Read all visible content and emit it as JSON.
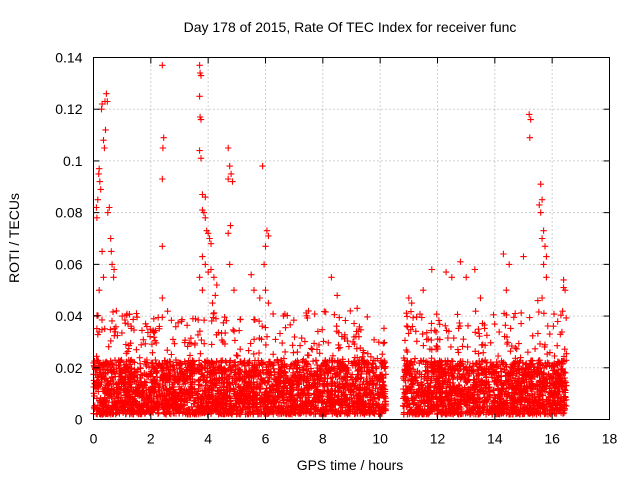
{
  "chart_data": {
    "type": "scatter",
    "title": "Day 178 of 2015, Rate Of TEC Index for receiver func",
    "xlabel": "GPS time / hours",
    "ylabel": "ROTI / TECUs",
    "xlim": [
      0,
      18
    ],
    "ylim": [
      0,
      0.14
    ],
    "x_ticks": [
      0,
      2,
      4,
      6,
      8,
      10,
      12,
      14,
      16,
      18
    ],
    "y_ticks": [
      0,
      0.02,
      0.04,
      0.06,
      0.08,
      0.1,
      0.12,
      0.14
    ],
    "x_tick_labels": [
      "0",
      "2",
      "4",
      "6",
      "8",
      "10",
      "12",
      "14",
      "16",
      "18"
    ],
    "y_tick_labels": [
      "0",
      "0.02",
      "0.04",
      "0.06",
      "0.08",
      "0.1",
      "0.12",
      "0.14"
    ],
    "grid": true,
    "marker": "+",
    "color": "#ff0000",
    "series": [
      {
        "name": "ROTI",
        "segments": [
          [
            0,
            10.2
          ],
          [
            10.8,
            16.5
          ]
        ],
        "baseline_range": [
          0.002,
          0.03
        ],
        "outliers": [
          [
            0.1,
            0.082
          ],
          [
            0.12,
            0.078
          ],
          [
            0.15,
            0.085
          ],
          [
            0.18,
            0.095
          ],
          [
            0.2,
            0.097
          ],
          [
            0.22,
            0.092
          ],
          [
            0.25,
            0.089
          ],
          [
            0.28,
            0.12
          ],
          [
            0.3,
            0.122
          ],
          [
            0.35,
            0.108
          ],
          [
            0.38,
            0.105
          ],
          [
            0.4,
            0.123
          ],
          [
            0.42,
            0.112
          ],
          [
            0.45,
            0.126
          ],
          [
            0.48,
            0.123
          ],
          [
            0.5,
            0.08
          ],
          [
            0.55,
            0.082
          ],
          [
            0.3,
            0.065
          ],
          [
            0.35,
            0.055
          ],
          [
            0.6,
            0.07
          ],
          [
            0.62,
            0.065
          ],
          [
            0.65,
            0.06
          ],
          [
            0.7,
            0.055
          ],
          [
            0.72,
            0.058
          ],
          [
            0.2,
            0.05
          ],
          [
            0.8,
            0.042
          ],
          [
            1.0,
            0.04
          ],
          [
            1.5,
            0.041
          ],
          [
            2.4,
            0.137
          ],
          [
            2.45,
            0.109
          ],
          [
            2.42,
            0.105
          ],
          [
            2.4,
            0.093
          ],
          [
            2.4,
            0.067
          ],
          [
            2.4,
            0.047
          ],
          [
            2.3,
            0.036
          ],
          [
            3.7,
            0.137
          ],
          [
            3.72,
            0.134
          ],
          [
            3.75,
            0.133
          ],
          [
            3.7,
            0.125
          ],
          [
            3.72,
            0.117
          ],
          [
            3.75,
            0.116
          ],
          [
            3.7,
            0.104
          ],
          [
            3.75,
            0.101
          ],
          [
            3.8,
            0.087
          ],
          [
            3.9,
            0.086
          ],
          [
            3.8,
            0.081
          ],
          [
            3.85,
            0.08
          ],
          [
            3.9,
            0.078
          ],
          [
            3.95,
            0.073
          ],
          [
            4.0,
            0.072
          ],
          [
            4.05,
            0.07
          ],
          [
            4.1,
            0.068
          ],
          [
            3.8,
            0.063
          ],
          [
            3.9,
            0.06
          ],
          [
            4.0,
            0.057
          ],
          [
            4.1,
            0.058
          ],
          [
            4.2,
            0.055
          ],
          [
            3.7,
            0.055
          ],
          [
            3.8,
            0.05
          ],
          [
            4.3,
            0.052
          ],
          [
            4.25,
            0.048
          ],
          [
            4.15,
            0.045
          ],
          [
            4.7,
            0.105
          ],
          [
            4.75,
            0.098
          ],
          [
            4.8,
            0.095
          ],
          [
            4.7,
            0.093
          ],
          [
            4.85,
            0.092
          ],
          [
            4.7,
            0.072
          ],
          [
            4.78,
            0.075
          ],
          [
            4.75,
            0.06
          ],
          [
            4.9,
            0.05
          ],
          [
            5.5,
            0.056
          ],
          [
            5.6,
            0.05
          ],
          [
            5.9,
            0.098
          ],
          [
            6.05,
            0.073
          ],
          [
            6.1,
            0.071
          ],
          [
            6.0,
            0.067
          ],
          [
            5.95,
            0.06
          ],
          [
            6.0,
            0.05
          ],
          [
            5.8,
            0.047
          ],
          [
            6.1,
            0.045
          ],
          [
            7.5,
            0.042
          ],
          [
            8.3,
            0.055
          ],
          [
            8.5,
            0.048
          ],
          [
            9.2,
            0.043
          ],
          [
            11.0,
            0.047
          ],
          [
            11.1,
            0.045
          ],
          [
            11.5,
            0.05
          ],
          [
            11.8,
            0.058
          ],
          [
            12.3,
            0.057
          ],
          [
            12.5,
            0.055
          ],
          [
            12.8,
            0.061
          ],
          [
            13.0,
            0.055
          ],
          [
            13.3,
            0.058
          ],
          [
            13.5,
            0.047
          ],
          [
            14.3,
            0.064
          ],
          [
            14.5,
            0.06
          ],
          [
            14.4,
            0.05
          ],
          [
            15.0,
            0.063
          ],
          [
            15.2,
            0.118
          ],
          [
            15.25,
            0.116
          ],
          [
            15.22,
            0.109
          ],
          [
            15.6,
            0.091
          ],
          [
            15.65,
            0.085
          ],
          [
            15.55,
            0.083
          ],
          [
            15.6,
            0.08
          ],
          [
            15.7,
            0.073
          ],
          [
            15.65,
            0.07
          ],
          [
            15.75,
            0.067
          ],
          [
            15.8,
            0.063
          ],
          [
            15.7,
            0.06
          ],
          [
            15.8,
            0.055
          ],
          [
            15.65,
            0.047
          ],
          [
            15.5,
            0.046
          ],
          [
            16.4,
            0.051
          ],
          [
            16.45,
            0.05
          ],
          [
            16.4,
            0.054
          ]
        ]
      }
    ]
  }
}
